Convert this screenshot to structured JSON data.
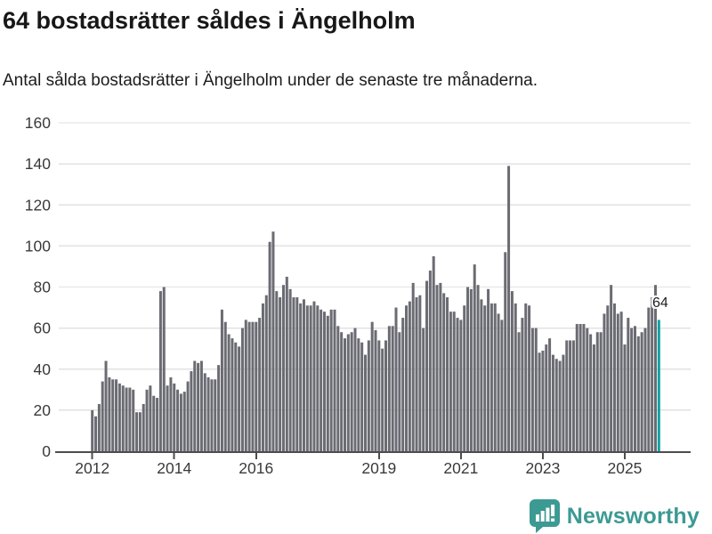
{
  "title": "64 bostadsrätter såldes i Ängelholm",
  "subtitle": "Antal sålda bostadsrätter i Ängelholm under de senaste tre månaderna.",
  "branding": {
    "logo_text": "Newsworthy",
    "logo_color": "#3c9a93"
  },
  "chart_data": {
    "type": "bar",
    "title": "64 bostadsrätter såldes i Ängelholm",
    "subtitle": "Antal sålda bostadsrätter i Ängelholm under de senaste tre månaderna.",
    "start_month": "2012-01",
    "frequency": "monthly",
    "values": [
      20,
      17,
      23,
      34,
      44,
      36,
      35,
      35,
      33,
      32,
      31,
      31,
      30,
      19,
      19,
      23,
      30,
      32,
      27,
      26,
      78,
      80,
      32,
      36,
      33,
      30,
      28,
      29,
      34,
      39,
      44,
      43,
      44,
      38,
      36,
      35,
      35,
      42,
      69,
      63,
      57,
      55,
      53,
      51,
      60,
      64,
      63,
      63,
      63,
      65,
      72,
      76,
      102,
      107,
      78,
      75,
      81,
      85,
      79,
      75,
      75,
      72,
      74,
      71,
      71,
      73,
      71,
      69,
      68,
      66,
      69,
      69,
      61,
      58,
      55,
      57,
      58,
      60,
      55,
      53,
      47,
      54,
      63,
      59,
      54,
      50,
      54,
      61,
      61,
      70,
      58,
      65,
      71,
      73,
      82,
      75,
      76,
      60,
      83,
      88,
      95,
      81,
      82,
      77,
      75,
      68,
      68,
      65,
      64,
      71,
      80,
      79,
      91,
      81,
      74,
      71,
      79,
      72,
      72,
      67,
      64,
      97,
      139,
      78,
      72,
      58,
      65,
      72,
      71,
      60,
      60,
      48,
      49,
      52,
      55,
      47,
      45,
      44,
      47,
      54,
      54,
      54,
      62,
      62,
      62,
      60,
      57,
      52,
      58,
      58,
      67,
      71,
      81,
      72,
      67,
      68,
      52,
      65,
      60,
      61,
      56,
      58,
      60,
      70,
      75,
      81,
      64
    ],
    "highlight_last": true,
    "highlight_label": "64",
    "bar_color": "#6b6b73",
    "highlight_color": "#11a2a2",
    "grid": true,
    "legend": "none",
    "ylim": [
      0,
      160
    ],
    "yticks": [
      0,
      20,
      40,
      60,
      80,
      100,
      120,
      140,
      160
    ],
    "xticks": [
      {
        "label": "2012",
        "month_index": 0
      },
      {
        "label": "2014",
        "month_index": 24
      },
      {
        "label": "2016",
        "month_index": 48
      },
      {
        "label": "2019",
        "month_index": 84
      },
      {
        "label": "2021",
        "month_index": 108
      },
      {
        "label": "2023",
        "month_index": 132
      },
      {
        "label": "2025",
        "month_index": 156
      }
    ],
    "colors": {
      "gridline": "#e2e2e2",
      "axis": "#4d4d4d",
      "tick_label": "#3a3a3a"
    }
  }
}
